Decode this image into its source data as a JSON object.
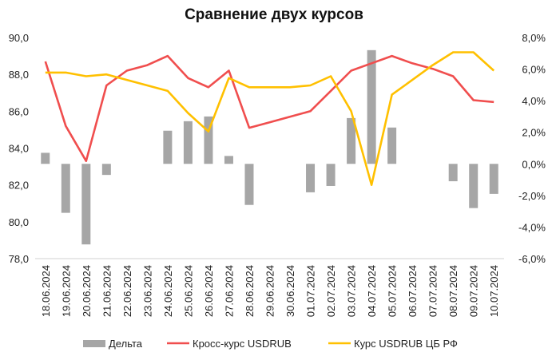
{
  "chart_data": {
    "type": "combo-bar-line",
    "title": "Сравнение двух курсов",
    "categories": [
      "18.06.2024",
      "19.06.2024",
      "20.06.2024",
      "21.06.2024",
      "22.06.2024",
      "23.06.2024",
      "24.06.2024",
      "25.06.2024",
      "26.06.2024",
      "27.06.2024",
      "28.06.2024",
      "29.06.2024",
      "30.06.2024",
      "01.07.2024",
      "02.07.2024",
      "03.07.2024",
      "04.07.2024",
      "05.07.2024",
      "06.07.2024",
      "07.07.2024",
      "08.07.2024",
      "09.07.2024",
      "10.07.2024"
    ],
    "y_left": {
      "ylim": [
        78,
        90
      ],
      "ticks": [
        "78,0",
        "80,0",
        "82,0",
        "84,0",
        "86,0",
        "88,0",
        "90,0"
      ],
      "tick_values": [
        78,
        80,
        82,
        84,
        86,
        88,
        90
      ]
    },
    "y_right": {
      "ylim": [
        -6,
        8
      ],
      "ticks": [
        "-6,0%",
        "-4,0%",
        "-2,0%",
        "0,0%",
        "2,0%",
        "4,0%",
        "6,0%",
        "8,0%"
      ],
      "tick_values": [
        -6,
        -4,
        -2,
        0,
        2,
        4,
        6,
        8
      ]
    },
    "series": [
      {
        "name": "Дельта",
        "type": "bar",
        "axis": "right",
        "color": "#a6a6a6",
        "values": [
          0.7,
          -3.1,
          -5.1,
          -0.7,
          null,
          null,
          2.1,
          2.7,
          3.0,
          0.5,
          -2.6,
          null,
          null,
          -1.8,
          -1.4,
          2.9,
          7.2,
          2.3,
          null,
          null,
          -1.1,
          -2.8,
          -1.9
        ]
      },
      {
        "name": "Кросс-курс USDRUB",
        "type": "line",
        "axis": "left",
        "color": "#f04e4e",
        "values": [
          88.7,
          85.2,
          83.3,
          87.4,
          88.2,
          88.5,
          89.0,
          87.8,
          87.3,
          88.2,
          85.1,
          85.4,
          85.7,
          86.0,
          87.1,
          88.2,
          88.6,
          89.0,
          88.6,
          88.3,
          87.9,
          86.6,
          86.5
        ]
      },
      {
        "name": "Курс USDRUB ЦБ РФ",
        "type": "line",
        "axis": "left",
        "color": "#ffc000",
        "values": [
          88.1,
          88.1,
          87.9,
          88.0,
          87.7,
          87.4,
          87.1,
          85.9,
          84.9,
          87.8,
          87.3,
          87.3,
          87.3,
          87.4,
          87.9,
          86.0,
          82.0,
          86.9,
          87.7,
          88.5,
          89.2,
          89.2,
          88.2
        ]
      }
    ],
    "legend": {
      "placement": "bottom",
      "items": [
        "Дельта",
        "Кросс-курс USDRUB",
        "Курс USDRUB ЦБ РФ"
      ]
    }
  }
}
